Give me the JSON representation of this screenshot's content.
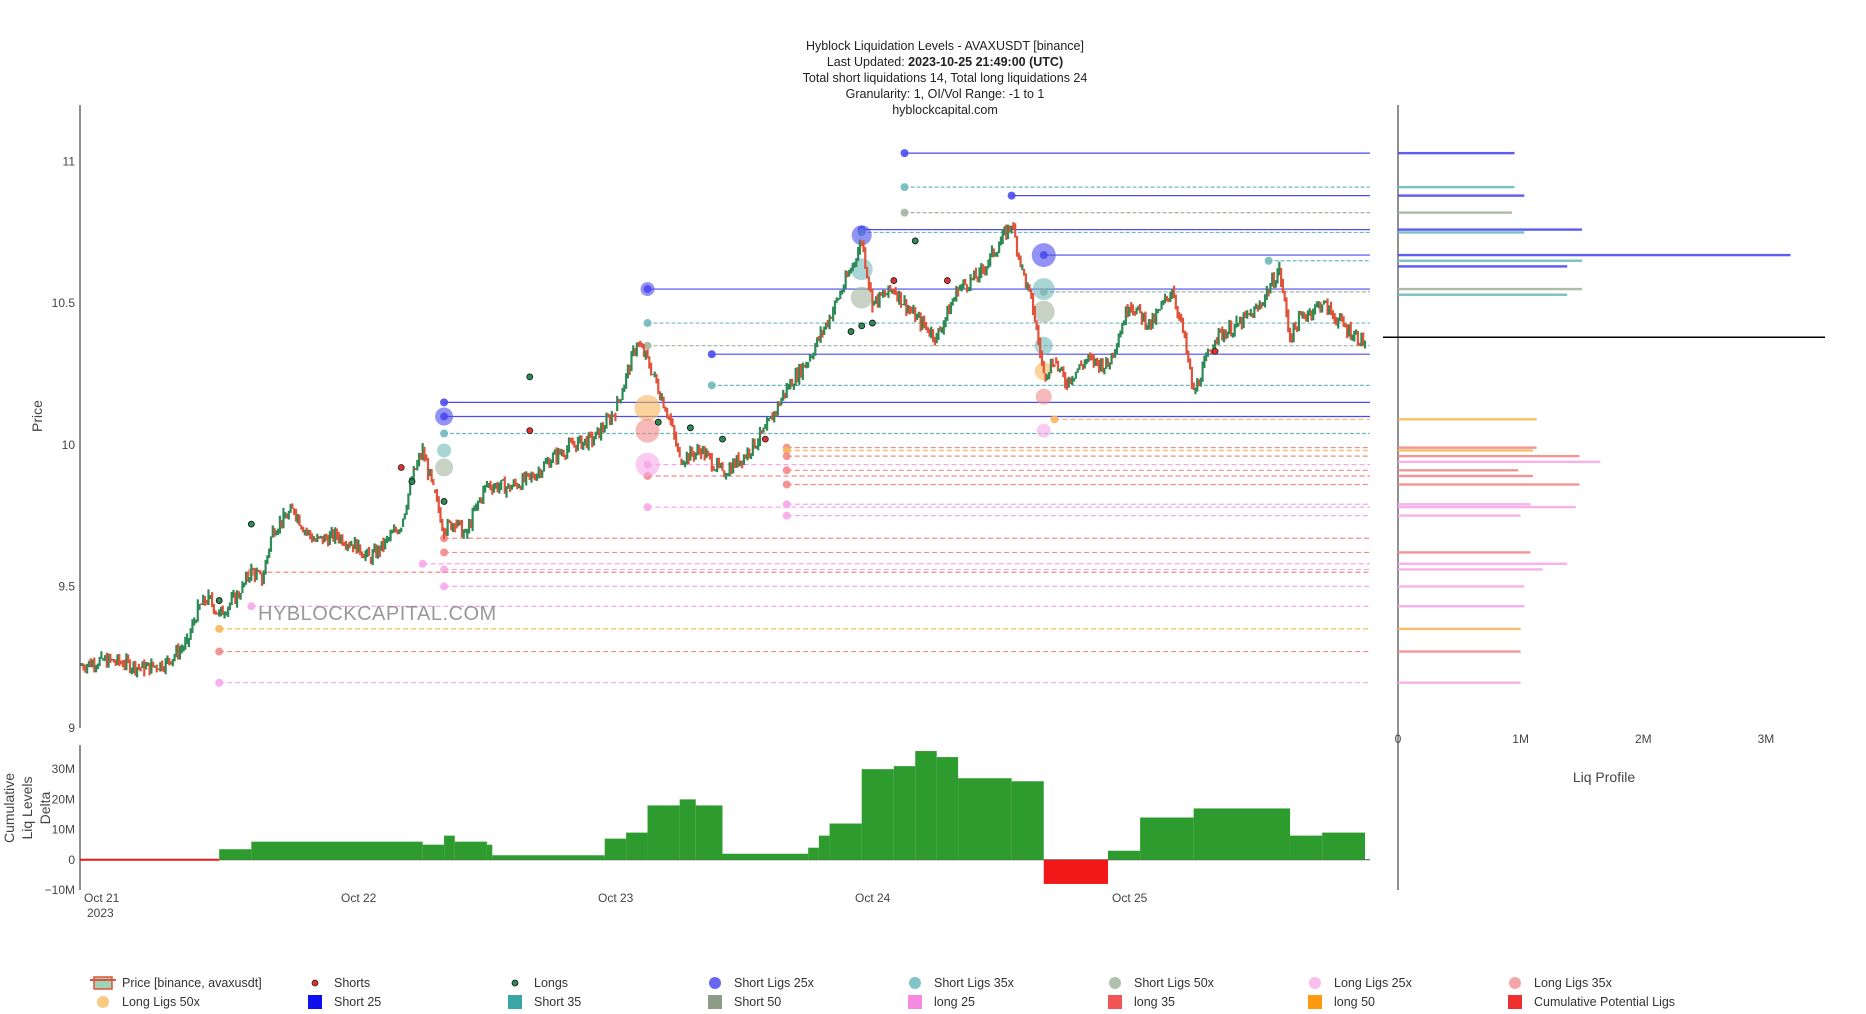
{
  "title_lines": {
    "line1": "Hyblock Liquidation Levels - AVAXUSDT [binance]",
    "line2_prefix": "Last Updated: ",
    "line2_value": "2023-10-25 21:49:00 (UTC)",
    "line3": "Total short liquidations 14, Total long liquidations 24",
    "line4": "Granularity: 1, OI/Vol Range: -1 to 1",
    "line5": "hyblockcapital.com"
  },
  "watermark": "HYBLOCKCAPITAL.COM",
  "colors": {
    "candle_up": "#2e8b57",
    "candle_down": "#e0523a",
    "short25": "#4b4bef",
    "short35": "#6fb9bd",
    "short50": "#a3b59f",
    "long25": "#f7a8e8",
    "long35": "#f28a8a",
    "long50": "#f7b85a",
    "delta_pos": "#2e9b2e",
    "delta_neg": "#f01818"
  },
  "chart_data": [
    {
      "type": "line",
      "name": "price",
      "ylabel": "Price",
      "ylim": [
        9,
        11.2
      ],
      "yticks": [
        "9",
        "9.5",
        "10",
        "10.5",
        "11"
      ],
      "yticks_values": [
        9,
        9.5,
        10,
        10.5,
        11
      ],
      "xticks": [
        {
          "x": 0,
          "label": "Oct 21",
          "sub": "2023"
        },
        {
          "x": 24,
          "label": "Oct 22",
          "sub": ""
        },
        {
          "x": 48,
          "label": "Oct 23",
          "sub": ""
        },
        {
          "x": 72,
          "label": "Oct 24",
          "sub": ""
        },
        {
          "x": 96,
          "label": "Oct 25",
          "sub": ""
        }
      ],
      "xlim_hours": [
        0,
        120
      ],
      "price_path": [
        [
          0,
          9.22
        ],
        [
          2,
          9.24
        ],
        [
          4,
          9.23
        ],
        [
          6,
          9.21
        ],
        [
          8,
          9.23
        ],
        [
          10,
          9.3
        ],
        [
          11,
          9.42
        ],
        [
          12,
          9.46
        ],
        [
          13,
          9.4
        ],
        [
          15,
          9.48
        ],
        [
          16,
          9.56
        ],
        [
          17,
          9.52
        ],
        [
          18,
          9.7
        ],
        [
          19,
          9.74
        ],
        [
          20,
          9.77
        ],
        [
          21,
          9.7
        ],
        [
          22,
          9.66
        ],
        [
          24,
          9.68
        ],
        [
          26,
          9.64
        ],
        [
          27,
          9.6
        ],
        [
          28,
          9.63
        ],
        [
          30,
          9.72
        ],
        [
          31,
          9.88
        ],
        [
          32,
          9.98
        ],
        [
          33,
          9.84
        ],
        [
          34,
          9.7
        ],
        [
          35,
          9.73
        ],
        [
          36,
          9.68
        ],
        [
          37,
          9.78
        ],
        [
          38,
          9.86
        ],
        [
          40,
          9.85
        ],
        [
          42,
          9.88
        ],
        [
          44,
          9.95
        ],
        [
          46,
          10.0
        ],
        [
          48,
          10.02
        ],
        [
          50,
          10.12
        ],
        [
          52,
          10.36
        ],
        [
          53,
          10.3
        ],
        [
          55,
          10.1
        ],
        [
          56,
          9.95
        ],
        [
          58,
          9.98
        ],
        [
          60,
          9.9
        ],
        [
          62,
          9.96
        ],
        [
          64,
          10.05
        ],
        [
          66,
          10.2
        ],
        [
          68,
          10.3
        ],
        [
          70,
          10.45
        ],
        [
          72,
          10.62
        ],
        [
          73,
          10.72
        ],
        [
          74,
          10.5
        ],
        [
          76,
          10.55
        ],
        [
          78,
          10.45
        ],
        [
          80,
          10.38
        ],
        [
          82,
          10.55
        ],
        [
          84,
          10.6
        ],
        [
          86,
          10.72
        ],
        [
          87,
          10.78
        ],
        [
          88,
          10.62
        ],
        [
          89,
          10.48
        ],
        [
          90,
          10.25
        ],
        [
          91,
          10.3
        ],
        [
          92,
          10.22
        ],
        [
          94,
          10.3
        ],
        [
          96,
          10.28
        ],
        [
          98,
          10.5
        ],
        [
          100,
          10.42
        ],
        [
          102,
          10.55
        ],
        [
          103,
          10.4
        ],
        [
          104,
          10.18
        ],
        [
          106,
          10.38
        ],
        [
          108,
          10.42
        ],
        [
          110,
          10.48
        ],
        [
          112,
          10.62
        ],
        [
          113,
          10.38
        ],
        [
          114,
          10.45
        ],
        [
          116,
          10.5
        ],
        [
          118,
          10.42
        ],
        [
          120,
          10.36
        ]
      ],
      "shorts_markers": [
        [
          30,
          9.92
        ],
        [
          42,
          10.05
        ],
        [
          64,
          10.02
        ],
        [
          76,
          10.58
        ],
        [
          81,
          10.58
        ],
        [
          106,
          10.33
        ]
      ],
      "longs_markers": [
        [
          13,
          9.45
        ],
        [
          16,
          9.72
        ],
        [
          31,
          9.87
        ],
        [
          34,
          9.8
        ],
        [
          42,
          10.24
        ],
        [
          54,
          10.08
        ],
        [
          57,
          10.06
        ],
        [
          60,
          10.02
        ],
        [
          72,
          10.4
        ],
        [
          73,
          10.42
        ],
        [
          74,
          10.43
        ],
        [
          78,
          10.72
        ]
      ],
      "levels": [
        {
          "kind": "short25",
          "y": 11.03,
          "x0": 77
        },
        {
          "kind": "short35",
          "y": 10.91,
          "x0": 77
        },
        {
          "kind": "short25",
          "y": 10.88,
          "x0": 87
        },
        {
          "kind": "short50",
          "y": 10.82,
          "x0": 77
        },
        {
          "kind": "short25",
          "y": 10.76,
          "x0": 73
        },
        {
          "kind": "short35",
          "y": 10.75,
          "x0": 73
        },
        {
          "kind": "short25",
          "y": 10.67,
          "x0": 90
        },
        {
          "kind": "short35",
          "y": 10.65,
          "x0": 111
        },
        {
          "kind": "short25",
          "y": 10.55,
          "x0": 53
        },
        {
          "kind": "short50",
          "y": 10.54,
          "x0": 90
        },
        {
          "kind": "short35",
          "y": 10.43,
          "x0": 53
        },
        {
          "kind": "short50",
          "y": 10.35,
          "x0": 53
        },
        {
          "kind": "short25",
          "y": 10.32,
          "x0": 59
        },
        {
          "kind": "short35",
          "y": 10.21,
          "x0": 59
        },
        {
          "kind": "short25",
          "y": 10.15,
          "x0": 34
        },
        {
          "kind": "short25",
          "y": 10.1,
          "x0": 34
        },
        {
          "kind": "short35",
          "y": 10.04,
          "x0": 34
        },
        {
          "kind": "long50",
          "y": 10.09,
          "x0": 91
        },
        {
          "kind": "long35",
          "y": 9.99,
          "x0": 66
        },
        {
          "kind": "long50",
          "y": 9.98,
          "x0": 66
        },
        {
          "kind": "long35",
          "y": 9.96,
          "x0": 66
        },
        {
          "kind": "long25",
          "y": 9.93,
          "x0": 53
        },
        {
          "kind": "long35",
          "y": 9.91,
          "x0": 66
        },
        {
          "kind": "long35",
          "y": 9.89,
          "x0": 53
        },
        {
          "kind": "long35",
          "y": 9.86,
          "x0": 66
        },
        {
          "kind": "long25",
          "y": 9.79,
          "x0": 66
        },
        {
          "kind": "long25",
          "y": 9.78,
          "x0": 53
        },
        {
          "kind": "long25",
          "y": 9.75,
          "x0": 66
        },
        {
          "kind": "long35",
          "y": 9.67,
          "x0": 34
        },
        {
          "kind": "long35",
          "y": 9.62,
          "x0": 34
        },
        {
          "kind": "long25",
          "y": 9.58,
          "x0": 32
        },
        {
          "kind": "long25",
          "y": 9.56,
          "x0": 34
        },
        {
          "kind": "long35",
          "y": 9.55,
          "x0": 16
        },
        {
          "kind": "long25",
          "y": 9.5,
          "x0": 34
        },
        {
          "kind": "long25",
          "y": 9.43,
          "x0": 16
        },
        {
          "kind": "long50",
          "y": 9.35,
          "x0": 13
        },
        {
          "kind": "long35",
          "y": 9.27,
          "x0": 13
        },
        {
          "kind": "long25",
          "y": 9.16,
          "x0": 13
        }
      ]
    },
    {
      "type": "area",
      "name": "cumulative-liq-delta",
      "ylabel": "Cumulative Liq Levels Delta",
      "ylim": [
        -10,
        38
      ],
      "yticks": [
        "−10M",
        "0",
        "10M",
        "20M",
        "30M"
      ],
      "yticks_values": [
        -10,
        0,
        10,
        20,
        30
      ],
      "steps": [
        [
          0,
          0
        ],
        [
          13,
          3.5
        ],
        [
          16,
          6
        ],
        [
          32,
          5
        ],
        [
          34,
          8
        ],
        [
          35,
          6
        ],
        [
          38,
          5
        ],
        [
          38.5,
          1.5
        ],
        [
          49,
          7
        ],
        [
          51,
          9
        ],
        [
          53,
          18
        ],
        [
          56,
          20
        ],
        [
          57.5,
          18
        ],
        [
          60,
          2
        ],
        [
          68,
          4
        ],
        [
          69,
          8
        ],
        [
          70,
          12
        ],
        [
          73,
          30
        ],
        [
          76,
          31
        ],
        [
          78,
          36
        ],
        [
          80,
          34
        ],
        [
          82,
          27
        ],
        [
          87,
          26
        ],
        [
          90,
          -8
        ],
        [
          96,
          3
        ],
        [
          99,
          14
        ],
        [
          104,
          17
        ],
        [
          113,
          8
        ],
        [
          116,
          9
        ],
        [
          120,
          9
        ]
      ]
    },
    {
      "type": "bar",
      "name": "liq-profile",
      "xlabel": "Liq Profile",
      "xticks": [
        "0",
        "1M",
        "2M",
        "3M"
      ],
      "xticks_values": [
        0,
        1,
        2,
        3
      ],
      "xlim": [
        0,
        3.4
      ],
      "current_price": 10.38,
      "bars": [
        {
          "kind": "short25",
          "y": 11.03,
          "v": 0.95
        },
        {
          "kind": "short35",
          "y": 10.91,
          "v": 0.95
        },
        {
          "kind": "short25",
          "y": 10.88,
          "v": 1.03
        },
        {
          "kind": "short50",
          "y": 10.82,
          "v": 0.93
        },
        {
          "kind": "short25",
          "y": 10.76,
          "v": 1.5
        },
        {
          "kind": "short35",
          "y": 10.75,
          "v": 1.03
        },
        {
          "kind": "short25",
          "y": 10.67,
          "v": 3.2
        },
        {
          "kind": "short35",
          "y": 10.65,
          "v": 1.5
        },
        {
          "kind": "short25",
          "y": 10.63,
          "v": 1.38
        },
        {
          "kind": "short50",
          "y": 10.55,
          "v": 1.5
        },
        {
          "kind": "short35",
          "y": 10.53,
          "v": 1.38
        },
        {
          "kind": "long50",
          "y": 10.09,
          "v": 1.13
        },
        {
          "kind": "long35",
          "y": 9.99,
          "v": 1.13
        },
        {
          "kind": "long50",
          "y": 9.98,
          "v": 1.1
        },
        {
          "kind": "long35",
          "y": 9.96,
          "v": 1.48
        },
        {
          "kind": "long25",
          "y": 9.94,
          "v": 1.65
        },
        {
          "kind": "long35",
          "y": 9.91,
          "v": 0.98
        },
        {
          "kind": "long35",
          "y": 9.89,
          "v": 1.1
        },
        {
          "kind": "long35",
          "y": 9.86,
          "v": 1.48
        },
        {
          "kind": "long25",
          "y": 9.79,
          "v": 1.08
        },
        {
          "kind": "long25",
          "y": 9.78,
          "v": 1.45
        },
        {
          "kind": "long25",
          "y": 9.75,
          "v": 1.0
        },
        {
          "kind": "long35",
          "y": 9.62,
          "v": 1.08
        },
        {
          "kind": "long25",
          "y": 9.58,
          "v": 1.38
        },
        {
          "kind": "long25",
          "y": 9.56,
          "v": 1.18
        },
        {
          "kind": "long25",
          "y": 9.5,
          "v": 1.03
        },
        {
          "kind": "long25",
          "y": 9.43,
          "v": 1.03
        },
        {
          "kind": "long50",
          "y": 9.35,
          "v": 1.0
        },
        {
          "kind": "long35",
          "y": 9.27,
          "v": 1.0
        },
        {
          "kind": "long25",
          "y": 9.16,
          "v": 1.0
        }
      ]
    }
  ],
  "legend": [
    {
      "label": "Price [binance, avaxusdt]",
      "kind": "price"
    },
    {
      "label": "Shorts",
      "kind": "dot-red"
    },
    {
      "label": "Longs",
      "kind": "dot-green"
    },
    {
      "label": "Short Ligs 25x",
      "kind": "circle-short25"
    },
    {
      "label": "Short Ligs 35x",
      "kind": "circle-short35"
    },
    {
      "label": "Short Ligs 50x",
      "kind": "circle-short50"
    },
    {
      "label": "Long Ligs 25x",
      "kind": "circle-long25"
    },
    {
      "label": "Long Ligs 35x",
      "kind": "circle-long35"
    },
    {
      "label": "Long Ligs 50x",
      "kind": "circle-long50"
    },
    {
      "label": "Short 25",
      "kind": "square-short25"
    },
    {
      "label": "Short 35",
      "kind": "square-short35"
    },
    {
      "label": "Short 50",
      "kind": "square-short50"
    },
    {
      "label": "long 25",
      "kind": "square-long25"
    },
    {
      "label": "long 35",
      "kind": "square-long35"
    },
    {
      "label": "long 50",
      "kind": "square-long50"
    },
    {
      "label": "Cumulative Potential Ligs",
      "kind": "square-cumulative"
    }
  ]
}
